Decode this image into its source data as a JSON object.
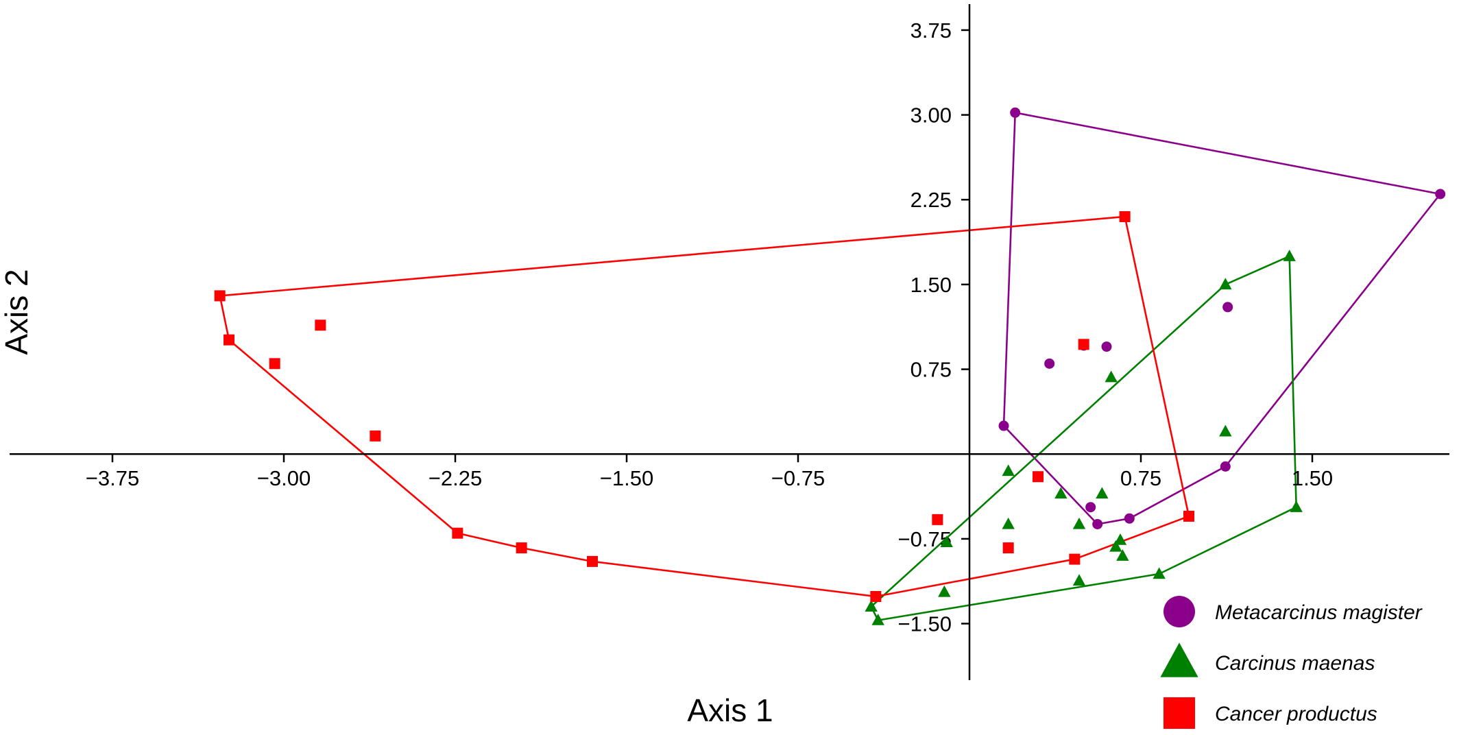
{
  "chart_data": {
    "type": "scatter",
    "xlabel": "Axis 1",
    "ylabel": "Axis 2",
    "xlim": [
      -4.2,
      2.1
    ],
    "ylim": [
      -2.0,
      3.98
    ],
    "x_ticks": [
      -3.75,
      -3.0,
      -2.25,
      -1.5,
      -0.75,
      0.75,
      1.5
    ],
    "x_tick_labels": [
      "−3.75",
      "−3.00",
      "−2.25",
      "−1.50",
      "−0.75",
      "0.75",
      "1.50"
    ],
    "y_ticks": [
      3.75,
      3.0,
      2.25,
      1.5,
      0.75,
      -0.75,
      -1.5
    ],
    "y_tick_labels": [
      "3.75",
      "3.00",
      "2.25",
      "1.50",
      "0.75",
      "−0.75",
      "−1.50"
    ],
    "grid": false,
    "legend_position": "bottom-right",
    "series": [
      {
        "name": "Metacarcinus magister",
        "marker": "circle",
        "color": "#8B008B",
        "points": [
          [
            0.2,
            3.02
          ],
          [
            2.06,
            2.3
          ],
          [
            1.13,
            1.3
          ],
          [
            0.35,
            0.8
          ],
          [
            0.5,
            0.96
          ],
          [
            0.6,
            0.95
          ],
          [
            0.15,
            0.25
          ],
          [
            0.53,
            -0.47
          ],
          [
            0.56,
            -0.62
          ],
          [
            0.7,
            -0.57
          ],
          [
            1.12,
            -0.11
          ]
        ],
        "hull": [
          [
            0.2,
            3.02
          ],
          [
            2.06,
            2.3
          ],
          [
            1.12,
            -0.11
          ],
          [
            0.7,
            -0.57
          ],
          [
            0.56,
            -0.62
          ],
          [
            0.15,
            0.25
          ]
        ]
      },
      {
        "name": "Carcinus maenas",
        "marker": "triangle",
        "color": "#008000",
        "points": [
          [
            1.4,
            1.75
          ],
          [
            1.12,
            1.5
          ],
          [
            0.62,
            0.68
          ],
          [
            1.12,
            0.2
          ],
          [
            0.17,
            -0.15
          ],
          [
            0.4,
            -0.35
          ],
          [
            0.58,
            -0.35
          ],
          [
            0.48,
            -0.62
          ],
          [
            0.17,
            -0.62
          ],
          [
            -0.1,
            -0.78
          ],
          [
            0.66,
            -0.76
          ],
          [
            0.64,
            -0.82
          ],
          [
            0.67,
            -0.9
          ],
          [
            0.48,
            -1.12
          ],
          [
            0.83,
            -1.06
          ],
          [
            -0.11,
            -1.22
          ],
          [
            -0.43,
            -1.35
          ],
          [
            -0.4,
            -1.47
          ],
          [
            1.43,
            -0.47
          ]
        ],
        "hull": [
          [
            1.4,
            1.75
          ],
          [
            1.12,
            1.5
          ],
          [
            -0.43,
            -1.35
          ],
          [
            -0.4,
            -1.47
          ],
          [
            0.83,
            -1.06
          ],
          [
            1.43,
            -0.47
          ]
        ]
      },
      {
        "name": "Cancer productus",
        "marker": "square",
        "color": "#FF0000",
        "points": [
          [
            -3.28,
            1.4
          ],
          [
            0.68,
            2.1
          ],
          [
            -3.24,
            1.01
          ],
          [
            -3.04,
            0.8
          ],
          [
            -2.84,
            1.14
          ],
          [
            -2.6,
            0.16
          ],
          [
            -2.24,
            -0.7
          ],
          [
            -1.96,
            -0.83
          ],
          [
            -1.65,
            -0.95
          ],
          [
            -0.41,
            -1.26
          ],
          [
            0.5,
            0.97
          ],
          [
            0.3,
            -0.2
          ],
          [
            -0.14,
            -0.58
          ],
          [
            0.17,
            -0.83
          ],
          [
            0.46,
            -0.93
          ],
          [
            0.96,
            -0.55
          ]
        ],
        "hull": [
          [
            -3.28,
            1.4
          ],
          [
            0.68,
            2.1
          ],
          [
            0.96,
            -0.55
          ],
          [
            0.46,
            -0.93
          ],
          [
            -0.41,
            -1.26
          ],
          [
            -1.65,
            -0.95
          ],
          [
            -1.96,
            -0.83
          ],
          [
            -2.24,
            -0.7
          ],
          [
            -3.24,
            1.01
          ]
        ]
      }
    ]
  }
}
